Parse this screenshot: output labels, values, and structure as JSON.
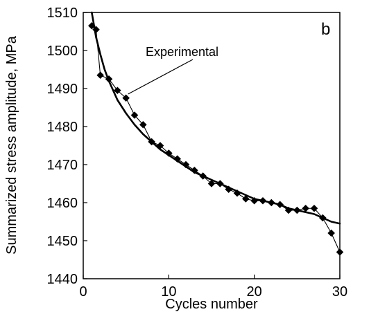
{
  "chart_data": {
    "type": "scatter",
    "panel_label": "b",
    "xlabel": "Cycles number",
    "ylabel": "Summarized stress amplitude, MPa",
    "xlim": [
      0,
      30
    ],
    "ylim": [
      1440,
      1510
    ],
    "xticks": [
      0,
      10,
      20,
      30
    ],
    "yticks": [
      1440,
      1450,
      1460,
      1470,
      1480,
      1490,
      1500,
      1510
    ],
    "grid": false,
    "annotations": [
      {
        "text": "Experimental",
        "points_to": {
          "x": 5,
          "y": 1488
        }
      }
    ],
    "series": [
      {
        "name": "Experimental",
        "style": "markers-with-line",
        "marker": "diamond",
        "color": "#000000",
        "x": [
          1,
          1.5,
          2,
          3,
          4,
          5,
          6,
          7,
          8,
          9,
          10,
          11,
          12,
          13,
          14,
          15,
          16,
          17,
          18,
          19,
          20,
          21,
          22,
          23,
          24,
          25,
          26,
          27,
          28,
          29,
          30
        ],
        "y": [
          1506.5,
          1505.5,
          1493.5,
          1492.5,
          1489.5,
          1487.5,
          1483,
          1480.5,
          1476,
          1475,
          1473,
          1471.5,
          1470,
          1468.5,
          1467,
          1465,
          1465,
          1463.5,
          1462.5,
          1461,
          1460.5,
          1460.5,
          1460,
          1459.5,
          1458,
          1458,
          1458.5,
          1458.5,
          1456,
          1452,
          1447
        ]
      },
      {
        "style": "line",
        "color": "#000000",
        "x": [
          1,
          1.5,
          2,
          2.5,
          3,
          4,
          5,
          6,
          7,
          8,
          9,
          10,
          11,
          12,
          13,
          14,
          15,
          16,
          17,
          18,
          19,
          20,
          21,
          22,
          23,
          24,
          25,
          26,
          27,
          28,
          29,
          30
        ],
        "y": [
          1510,
          1503.5,
          1499,
          1495,
          1492,
          1487,
          1483.5,
          1480.5,
          1478,
          1476,
          1474,
          1472.5,
          1471,
          1469.5,
          1468,
          1467,
          1466,
          1465,
          1464,
          1463,
          1462,
          1461,
          1460.5,
          1460,
          1459.5,
          1458.5,
          1458,
          1457.5,
          1457,
          1456,
          1455,
          1454.5
        ]
      }
    ]
  }
}
